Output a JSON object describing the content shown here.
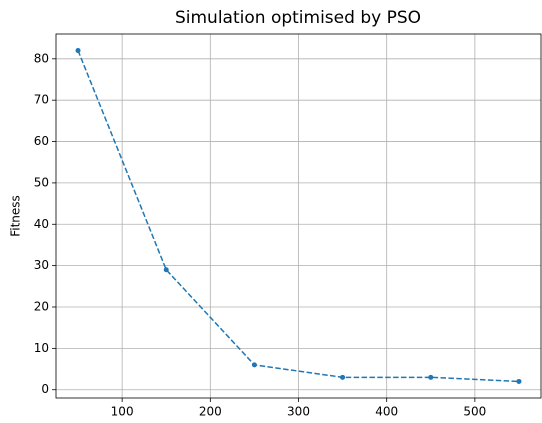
{
  "chart_data": {
    "type": "line",
    "title": "Simulation optimised by PSO",
    "ylabel": "Fitness",
    "x": [
      50,
      150,
      250,
      350,
      450,
      550
    ],
    "series": [
      {
        "color": "#1f77b4",
        "values": [
          82,
          29,
          6,
          3,
          3,
          2
        ]
      }
    ],
    "xlim": [
      25,
      575
    ],
    "xticks": [
      100,
      200,
      300,
      400,
      500
    ],
    "ylim": [
      -2,
      86
    ],
    "yticks": [
      0,
      10,
      20,
      30,
      40,
      50,
      60,
      70,
      80
    ],
    "grid": true,
    "linestyle": "dashed",
    "marker": "circle"
  }
}
